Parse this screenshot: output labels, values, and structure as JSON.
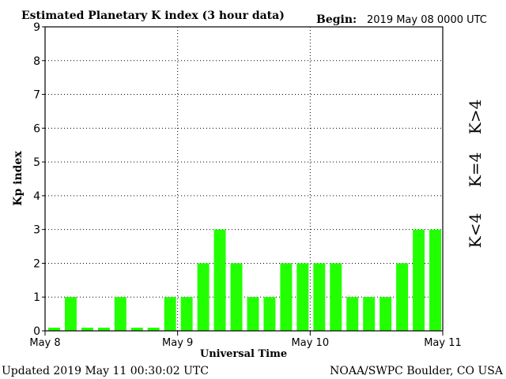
{
  "header": {
    "title": "Estimated Planetary K index (3 hour data)",
    "begin_label": "Begin:",
    "begin_value": "2019 May 08 0000 UTC"
  },
  "footer": {
    "updated": "Updated 2019 May 11 00:30:02 UTC",
    "credit": "NOAA/SWPC Boulder, CO USA"
  },
  "legend": {
    "high": "K>4",
    "equal": "K=4",
    "low": "K<4"
  },
  "colors": {
    "low": "#22ff00",
    "equal": "#ffcc00",
    "high": "#ff2200",
    "axis": "#000000"
  },
  "chart_data": {
    "type": "bar",
    "title": "Estimated Planetary K index (3 hour data)",
    "xlabel": "Universal Time",
    "ylabel": "Kp index",
    "ylim": [
      0,
      9
    ],
    "yticks": [
      "0",
      "1",
      "2",
      "3",
      "4",
      "5",
      "6",
      "7",
      "8",
      "9"
    ],
    "xticks": [
      "May 8",
      "May 9",
      "May 10",
      "May 11"
    ],
    "grid": "dotted",
    "values": [
      0,
      1,
      0,
      0,
      1,
      0,
      0,
      1,
      1,
      2,
      3,
      2,
      1,
      1,
      2,
      2,
      2,
      2,
      1,
      1,
      1,
      2,
      3,
      3
    ]
  }
}
